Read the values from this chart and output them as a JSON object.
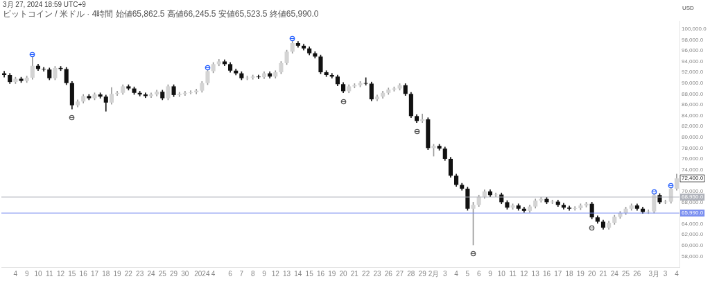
{
  "chart_data": {
    "type": "candlestick",
    "title": "3月 27, 2024 18:59 UTC+9",
    "subtitle": "ビットコイン / 米ドル · 4時間  始値65,862.5 高値66,245.5 安値65,523.5 終値65,990.0",
    "ylabel": "USD",
    "categories": [
      null,
      null,
      "4",
      null,
      "9",
      null,
      "10",
      null,
      "11",
      null,
      "12",
      null,
      "15",
      null,
      "16",
      null,
      "17",
      null,
      "18",
      null,
      "19",
      null,
      "22",
      null,
      "23",
      null,
      "24",
      null,
      "25",
      null,
      "29",
      null,
      "30",
      null,
      null,
      "2024",
      null,
      "4",
      null,
      null,
      "6",
      null,
      "7",
      null,
      "8",
      null,
      "9",
      null,
      "12",
      null,
      "13",
      null,
      "14",
      null,
      "15",
      null,
      "16",
      null,
      "19",
      null,
      "20",
      null,
      "21",
      null,
      "22",
      null,
      "23",
      null,
      "26",
      null,
      "27",
      null,
      "28",
      null,
      "29",
      null,
      "2月",
      null,
      "3",
      null,
      "4",
      null,
      "5",
      null,
      "6",
      null,
      "9",
      null,
      "10",
      null,
      "11",
      null,
      "12",
      null,
      "13",
      null,
      "16",
      null,
      "17",
      null,
      "18",
      null,
      "19",
      null,
      "20",
      null,
      "21",
      null,
      "24",
      null,
      "25",
      null,
      "26",
      null,
      null,
      "3月",
      null,
      "3",
      null,
      "4"
    ],
    "ohlc": [
      [
        91800,
        92200,
        91100,
        91500
      ],
      [
        91500,
        91800,
        89900,
        90200
      ],
      [
        90200,
        91100,
        89900,
        90800
      ],
      [
        90800,
        91100,
        90100,
        90400
      ],
      [
        90400,
        91300,
        90100,
        91000
      ],
      [
        91000,
        94900,
        90700,
        93200
      ],
      [
        93200,
        93500,
        92300,
        92600
      ],
      [
        92600,
        92900,
        92200,
        92500
      ],
      [
        92500,
        92800,
        90600,
        90900
      ],
      [
        90900,
        93100,
        90600,
        92800
      ],
      [
        92800,
        93100,
        92300,
        92600
      ],
      [
        92600,
        92900,
        89700,
        90000
      ],
      [
        90000,
        90300,
        85200,
        85900
      ],
      [
        85900,
        86900,
        85600,
        86600
      ],
      [
        86600,
        87900,
        86300,
        87600
      ],
      [
        87600,
        87900,
        86900,
        87200
      ],
      [
        87200,
        88200,
        86900,
        87900
      ],
      [
        87900,
        88200,
        87200,
        87500
      ],
      [
        87500,
        87800,
        84800,
        86400
      ],
      [
        86400,
        89200,
        86100,
        88000
      ],
      [
        88000,
        88500,
        87700,
        88200
      ],
      [
        88200,
        89700,
        87900,
        89400
      ],
      [
        89400,
        89700,
        88700,
        89000
      ],
      [
        89000,
        89300,
        87900,
        88200
      ],
      [
        88200,
        88500,
        87600,
        87900
      ],
      [
        87900,
        88200,
        87300,
        87600
      ],
      [
        87600,
        88200,
        87300,
        87900
      ],
      [
        87900,
        88700,
        87600,
        88400
      ],
      [
        88400,
        88700,
        86900,
        87200
      ],
      [
        87200,
        89700,
        86900,
        89400
      ],
      [
        89400,
        89700,
        87500,
        87800
      ],
      [
        87800,
        88300,
        87500,
        88000
      ],
      [
        88000,
        88500,
        87700,
        88200
      ],
      [
        88200,
        88600,
        88000,
        88300
      ],
      [
        88300,
        88900,
        88000,
        88600
      ],
      [
        88600,
        90300,
        88300,
        90000
      ],
      [
        90000,
        92500,
        89700,
        92200
      ],
      [
        92200,
        93800,
        91900,
        93500
      ],
      [
        93500,
        94400,
        93200,
        94000
      ],
      [
        94000,
        94300,
        93200,
        93500
      ],
      [
        93500,
        93800,
        92000,
        92300
      ],
      [
        92300,
        92600,
        91500,
        91800
      ],
      [
        91800,
        92100,
        90600,
        90900
      ],
      [
        90900,
        91300,
        90600,
        91000
      ],
      [
        91000,
        91500,
        90700,
        91200
      ],
      [
        91200,
        91500,
        90800,
        91100
      ],
      [
        91100,
        92100,
        90800,
        91800
      ],
      [
        91800,
        92100,
        90900,
        91200
      ],
      [
        91200,
        92300,
        90900,
        92000
      ],
      [
        92000,
        94000,
        91700,
        93700
      ],
      [
        93700,
        96100,
        93400,
        95800
      ],
      [
        95800,
        97900,
        95500,
        97400
      ],
      [
        97400,
        97700,
        96600,
        96900
      ],
      [
        96900,
        97200,
        96100,
        96400
      ],
      [
        96400,
        96700,
        95200,
        95500
      ],
      [
        95500,
        95800,
        94600,
        94900
      ],
      [
        94900,
        95200,
        91700,
        92000
      ],
      [
        92000,
        92300,
        91200,
        91500
      ],
      [
        91500,
        91800,
        90900,
        91200
      ],
      [
        91200,
        91500,
        89500,
        89800
      ],
      [
        89800,
        90100,
        88200,
        88500
      ],
      [
        88500,
        89700,
        88200,
        89400
      ],
      [
        89400,
        89900,
        89100,
        89600
      ],
      [
        89600,
        90300,
        89300,
        90000
      ],
      [
        90000,
        91000,
        89600,
        89900
      ],
      [
        89900,
        90200,
        86700,
        87000
      ],
      [
        87000,
        87800,
        86700,
        87500
      ],
      [
        87500,
        88500,
        87200,
        88200
      ],
      [
        88200,
        89100,
        87900,
        88800
      ],
      [
        88800,
        89300,
        88500,
        89000
      ],
      [
        89000,
        89900,
        88700,
        89600
      ],
      [
        89600,
        89900,
        87700,
        88000
      ],
      [
        88000,
        88300,
        83600,
        83900
      ],
      [
        83900,
        84200,
        82700,
        83000
      ],
      [
        83000,
        84300,
        82700,
        83300
      ],
      [
        83300,
        83600,
        77700,
        78000
      ],
      [
        78000,
        78700,
        76500,
        78400
      ],
      [
        78400,
        78700,
        77600,
        77900
      ],
      [
        77900,
        78200,
        75700,
        76000
      ],
      [
        76000,
        76300,
        72600,
        72900
      ],
      [
        72900,
        73200,
        70900,
        71200
      ],
      [
        71200,
        71500,
        70200,
        70500
      ],
      [
        70500,
        70800,
        66500,
        66800
      ],
      [
        66800,
        68000,
        60100,
        67500
      ],
      [
        67500,
        69300,
        67200,
        69000
      ],
      [
        69000,
        70300,
        68700,
        70000
      ],
      [
        70000,
        70300,
        69000,
        69300
      ],
      [
        69300,
        69700,
        69000,
        69400
      ],
      [
        69400,
        69700,
        67700,
        68000
      ],
      [
        68000,
        68300,
        66700,
        67000
      ],
      [
        67000,
        67700,
        66700,
        67400
      ],
      [
        67400,
        67700,
        66500,
        66800
      ],
      [
        66800,
        67100,
        66100,
        66400
      ],
      [
        66400,
        67500,
        66100,
        67200
      ],
      [
        67200,
        68600,
        66900,
        68300
      ],
      [
        68300,
        68900,
        68000,
        68600
      ],
      [
        68600,
        68900,
        67700,
        68000
      ],
      [
        68000,
        68400,
        67700,
        68100
      ],
      [
        68100,
        68400,
        67200,
        67500
      ],
      [
        67500,
        67800,
        66700,
        67000
      ],
      [
        67000,
        67300,
        66500,
        66800
      ],
      [
        66800,
        67200,
        66500,
        66900
      ],
      [
        66900,
        67700,
        66600,
        67400
      ],
      [
        67400,
        68000,
        67100,
        67700
      ],
      [
        67700,
        68000,
        64900,
        65200
      ],
      [
        65200,
        65500,
        64100,
        64400
      ],
      [
        64400,
        64700,
        63000,
        63300
      ],
      [
        63300,
        64500,
        63000,
        64200
      ],
      [
        64200,
        65600,
        63900,
        65300
      ],
      [
        65300,
        66300,
        65000,
        66000
      ],
      [
        66000,
        67100,
        65700,
        66800
      ],
      [
        66800,
        67700,
        66500,
        67400
      ],
      [
        67400,
        67700,
        66500,
        66800
      ],
      [
        66800,
        67100,
        65900,
        66200
      ],
      [
        66200,
        66600,
        65900,
        66300
      ],
      [
        66300,
        69600,
        66000,
        69300
      ],
      [
        69300,
        69600,
        67700,
        68000
      ],
      [
        68000,
        68400,
        67700,
        68100
      ],
      [
        68100,
        70800,
        67800,
        70500
      ],
      [
        70500,
        73200,
        70200,
        72400
      ]
    ],
    "ylim": [
      56000,
      101500
    ],
    "yticks": [
      {
        "value": 58000,
        "label": "58,000.0"
      },
      {
        "value": 60000,
        "label": "60,000.0"
      },
      {
        "value": 62000,
        "label": "62,000.0"
      },
      {
        "value": 64000,
        "label": "64,000.0"
      },
      {
        "value": 68000,
        "label": "68,000.0"
      },
      {
        "value": 70000,
        "label": "70,000.0"
      },
      {
        "value": 74000,
        "label": "74,000.0"
      },
      {
        "value": 76000,
        "label": "76,000.0"
      },
      {
        "value": 78000,
        "label": "78,000.0"
      },
      {
        "value": 80000,
        "label": "80,000.0"
      },
      {
        "value": 82000,
        "label": "82,000.0"
      },
      {
        "value": 84000,
        "label": "84,000.0"
      },
      {
        "value": 86000,
        "label": "86,000.0"
      },
      {
        "value": 88000,
        "label": "88,000.0"
      },
      {
        "value": 90000,
        "label": "90,000.0"
      },
      {
        "value": 92000,
        "label": "92,000.0"
      },
      {
        "value": 94000,
        "label": "94,000.0"
      },
      {
        "value": 96000,
        "label": "96,000.0"
      },
      {
        "value": 98000,
        "label": "98,000.0"
      },
      {
        "value": 100000,
        "label": "100,000.0"
      }
    ],
    "grid": false,
    "ref_lines": [
      {
        "axis": "y",
        "value": 65990,
        "label": "65,990.0",
        "color": "#7b8ff0"
      },
      {
        "axis": "y",
        "value": 68950,
        "label": "68,950.0",
        "color": "#b0b3bb"
      }
    ],
    "annotations": [
      "72,400.0"
    ]
  }
}
